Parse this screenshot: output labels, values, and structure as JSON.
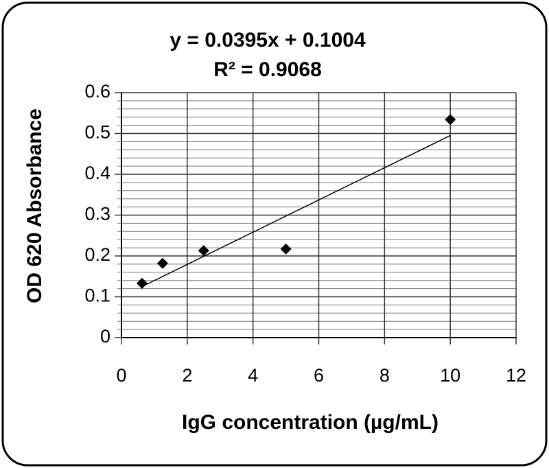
{
  "chart_data": {
    "type": "scatter",
    "equation": "y = 0.0395x + 0.1004",
    "r_squared": "R² = 0.9068",
    "x_label": "IgG concentration (µg/mL)",
    "y_label": "OD 620 Absorbance",
    "x": [
      0.625,
      1.25,
      2.5,
      5,
      10
    ],
    "values": [
      0.133,
      0.182,
      0.213,
      0.217,
      0.534
    ],
    "color": "#000000",
    "trendline": {
      "x": [
        0.625,
        10
      ],
      "values": [
        0.125,
        0.495
      ],
      "color": "#000000"
    },
    "xlim": [
      0,
      12
    ],
    "xticks": [
      0,
      2,
      4,
      6,
      8,
      10,
      12
    ],
    "ylim": [
      0,
      0.6
    ],
    "yticks": [
      0,
      0.1,
      0.2,
      0.3,
      0.4,
      0.5,
      0.6
    ],
    "yminorticks": [
      0.02,
      0.04,
      0.06,
      0.08,
      0.12,
      0.14,
      0.16,
      0.18,
      0.22,
      0.24,
      0.26,
      0.28,
      0.32,
      0.34,
      0.36,
      0.38,
      0.42,
      0.44,
      0.46,
      0.48,
      0.52,
      0.54,
      0.56,
      0.58
    ],
    "grid": true
  }
}
